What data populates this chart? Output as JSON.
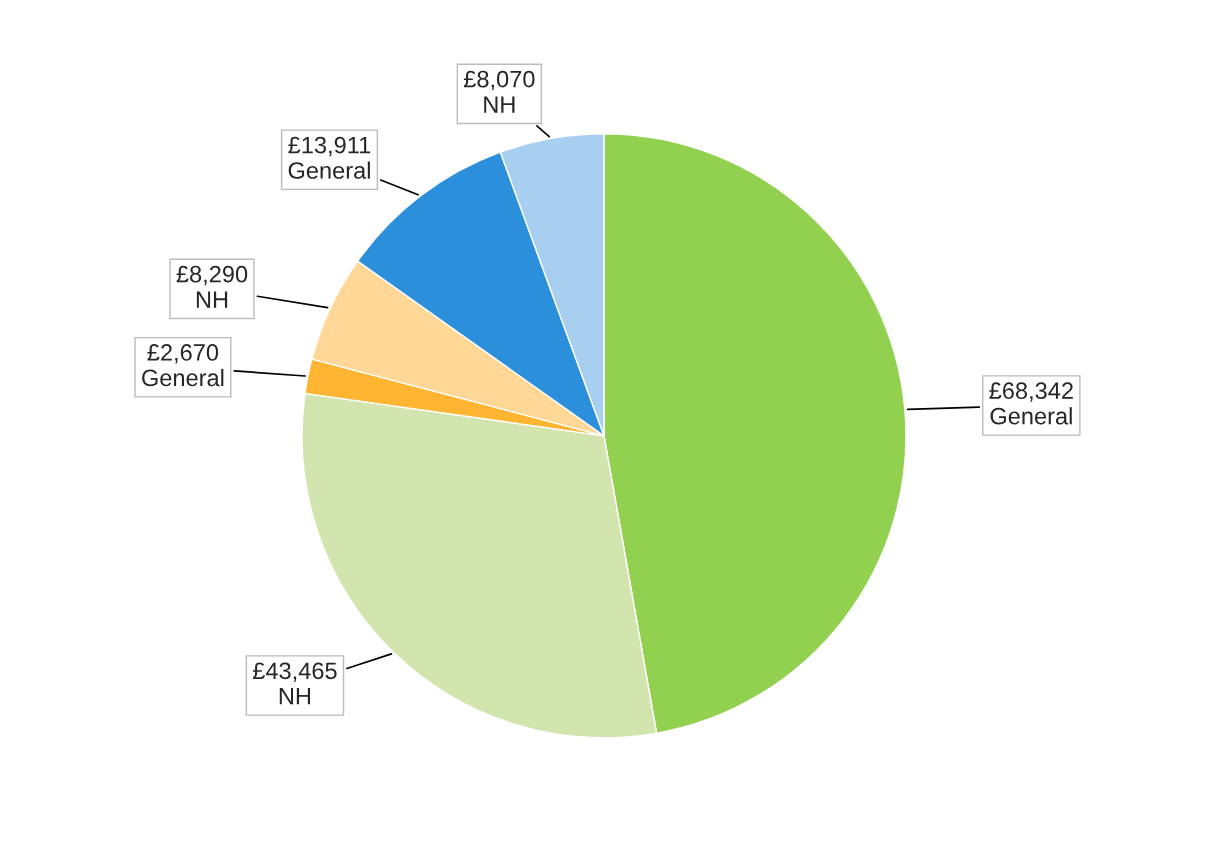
{
  "chart_data": {
    "type": "pie",
    "categories": [
      "General",
      "NH",
      "General",
      "NH",
      "General",
      "NH"
    ],
    "values": [
      68342,
      43465,
      2670,
      8290,
      13911,
      8070
    ],
    "value_labels": [
      "£68,342",
      "£43,465",
      "£2,670",
      "£8,290",
      "£13,911",
      "£8,070"
    ],
    "colors": [
      "#92d050",
      "#d3e5ae",
      "#ffb531",
      "#ffd796",
      "#2b8fdc",
      "#a9cff0"
    ]
  }
}
